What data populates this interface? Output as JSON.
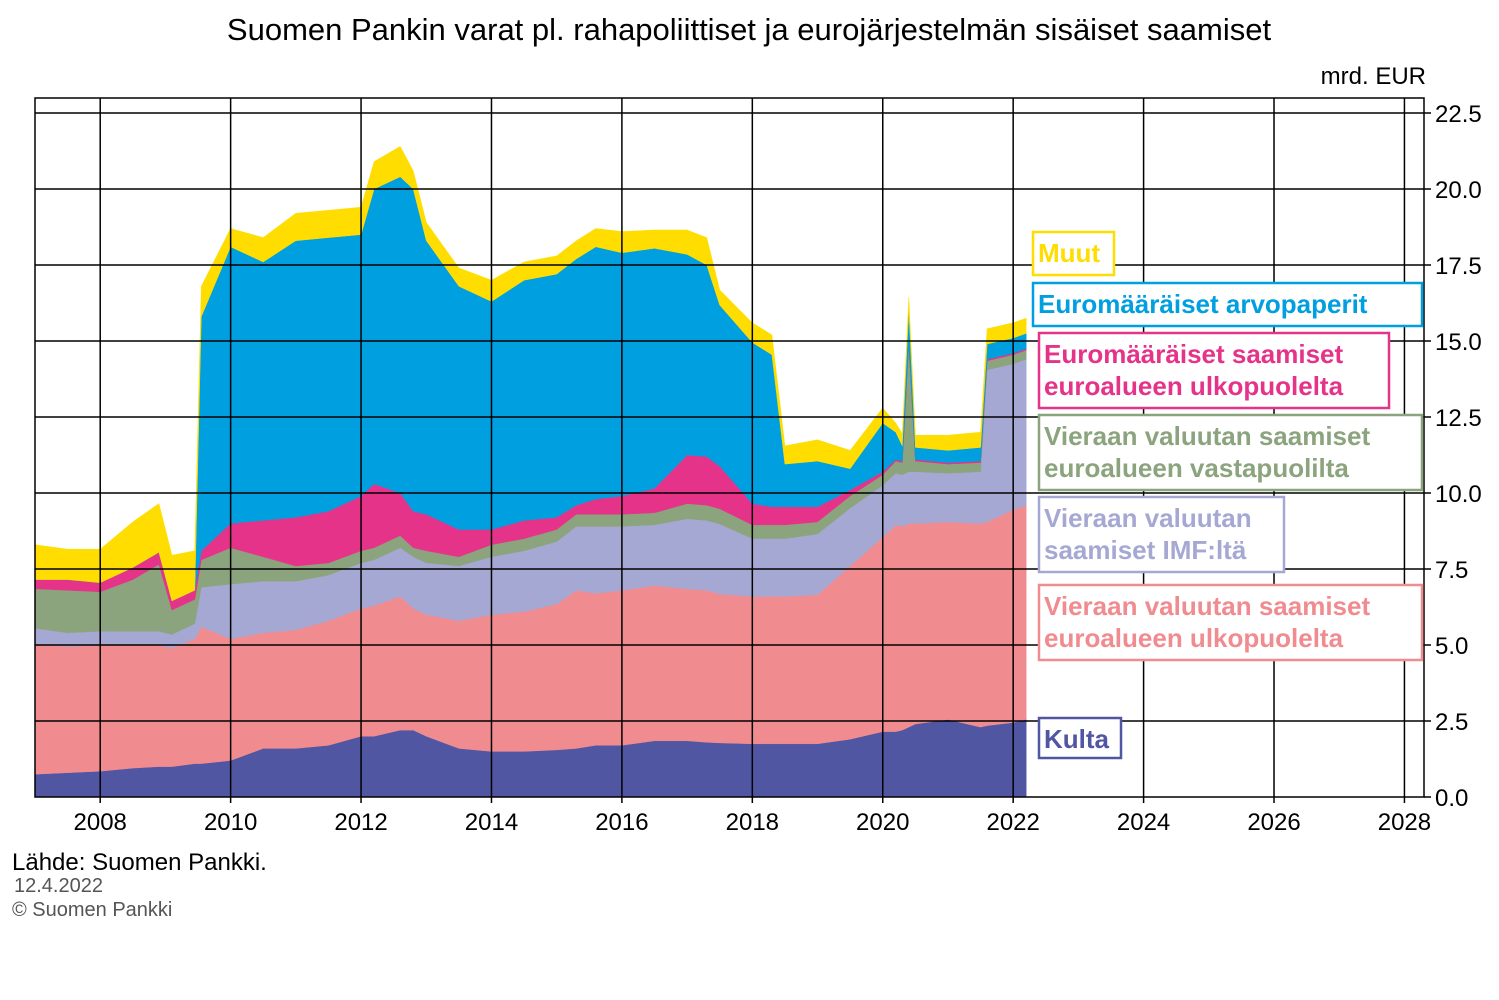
{
  "chart_data": {
    "type": "area",
    "stacked": true,
    "title": "Suomen Pankin varat pl. rahapoliittiset ja eurojärjestelmän sisäiset saamiset",
    "unit_label": "mrd. EUR",
    "x_range": [
      2007.0,
      2028.3
    ],
    "ylim": [
      0,
      22.5
    ],
    "x_ticks": [
      {
        "value": 2008,
        "label": "2008"
      },
      {
        "value": 2010,
        "label": "2010"
      },
      {
        "value": 2012,
        "label": "2012"
      },
      {
        "value": 2014,
        "label": "2014"
      },
      {
        "value": 2016,
        "label": "2016"
      },
      {
        "value": 2018,
        "label": "2018"
      },
      {
        "value": 2020,
        "label": "2020"
      },
      {
        "value": 2022,
        "label": "2022"
      },
      {
        "value": 2024,
        "label": "2024"
      },
      {
        "value": 2026,
        "label": "2026"
      },
      {
        "value": 2028,
        "label": "2028"
      }
    ],
    "y_ticks": [
      {
        "value": 0,
        "label": "0.0"
      },
      {
        "value": 2.5,
        "label": "2.5"
      },
      {
        "value": 5,
        "label": "5.0"
      },
      {
        "value": 7.5,
        "label": "7.5"
      },
      {
        "value": 10,
        "label": "10.0"
      },
      {
        "value": 12.5,
        "label": "12.5"
      },
      {
        "value": 15,
        "label": "15.0"
      },
      {
        "value": 17.5,
        "label": "17.5"
      },
      {
        "value": 20,
        "label": "20.0"
      },
      {
        "value": 22.5,
        "label": "22.5"
      }
    ],
    "grid": true,
    "x": [
      2007.0,
      2007.5,
      2008.0,
      2008.5,
      2008.9,
      2009.1,
      2009.45,
      2009.55,
      2010.0,
      2010.5,
      2011.0,
      2011.5,
      2012.0,
      2012.2,
      2012.6,
      2012.8,
      2013.0,
      2013.5,
      2014.0,
      2014.5,
      2015.0,
      2015.3,
      2015.6,
      2016.0,
      2016.5,
      2017.0,
      2017.3,
      2017.5,
      2018.0,
      2018.3,
      2018.5,
      2019.0,
      2019.5,
      2020.0,
      2020.2,
      2020.3,
      2020.4,
      2020.5,
      2021.0,
      2021.5,
      2021.6,
      2022.0,
      2022.2
    ],
    "series": [
      {
        "name": "Kulta",
        "color": "#5156a2",
        "values": [
          0.75,
          0.8,
          0.85,
          0.95,
          1.0,
          1.0,
          1.1,
          1.1,
          1.2,
          1.6,
          1.6,
          1.7,
          2.0,
          2.0,
          2.2,
          2.2,
          2.0,
          1.6,
          1.5,
          1.5,
          1.55,
          1.6,
          1.7,
          1.7,
          1.85,
          1.85,
          1.8,
          1.78,
          1.75,
          1.75,
          1.75,
          1.75,
          1.9,
          2.15,
          2.15,
          2.2,
          2.3,
          2.4,
          2.55,
          2.3,
          2.35,
          2.45,
          2.55
        ]
      },
      {
        "name": "Vieraan valuutan saamiset euroalueen ulkopuolelta",
        "color": "#f08c90",
        "values": [
          4.3,
          4.15,
          4.15,
          4.05,
          4.0,
          3.9,
          4.1,
          4.5,
          4.0,
          3.8,
          3.9,
          4.1,
          4.2,
          4.3,
          4.4,
          4.0,
          4.0,
          4.2,
          4.5,
          4.6,
          4.8,
          5.2,
          5.0,
          5.1,
          5.1,
          5.0,
          5.0,
          4.9,
          4.85,
          4.85,
          4.85,
          4.9,
          5.7,
          6.4,
          6.8,
          6.7,
          6.7,
          6.6,
          6.5,
          6.7,
          6.7,
          7.0,
          7.05
        ]
      },
      {
        "name": "Vieraan valuutan saamiset IMF:ltä",
        "color": "#a6a8d4",
        "values": [
          0.5,
          0.45,
          0.45,
          0.45,
          0.45,
          0.45,
          0.5,
          1.3,
          1.8,
          1.7,
          1.6,
          1.5,
          1.5,
          1.5,
          1.6,
          1.7,
          1.7,
          1.8,
          1.9,
          2.0,
          2.05,
          2.1,
          2.2,
          2.1,
          2.0,
          2.3,
          2.3,
          2.3,
          1.9,
          1.9,
          1.9,
          2.0,
          1.9,
          1.7,
          1.7,
          1.7,
          1.7,
          1.7,
          1.6,
          1.7,
          5.0,
          4.8,
          4.8
        ]
      },
      {
        "name": "Vieraan valuutan saamiset euroalueen vastapuolilta",
        "color": "#8ca47e",
        "values": [
          1.3,
          1.4,
          1.3,
          1.7,
          2.2,
          0.8,
          0.8,
          0.9,
          1.2,
          0.8,
          0.5,
          0.4,
          0.4,
          0.4,
          0.4,
          0.3,
          0.4,
          0.3,
          0.4,
          0.4,
          0.4,
          0.4,
          0.4,
          0.4,
          0.4,
          0.5,
          0.5,
          0.5,
          0.45,
          0.45,
          0.45,
          0.4,
          0.4,
          0.35,
          0.4,
          0.4,
          4.2,
          0.35,
          0.3,
          0.3,
          0.3,
          0.3,
          0.3
        ]
      },
      {
        "name": "Euromääräiset saamiset euroalueen ulkopuolelta",
        "color": "#e5338a",
        "values": [
          0.3,
          0.35,
          0.3,
          0.4,
          0.4,
          0.3,
          0.3,
          0.3,
          0.8,
          1.2,
          1.6,
          1.7,
          1.8,
          2.1,
          1.4,
          1.2,
          1.2,
          0.9,
          0.5,
          0.6,
          0.4,
          0.3,
          0.5,
          0.6,
          0.8,
          1.6,
          1.6,
          1.4,
          0.7,
          0.6,
          0.6,
          0.5,
          0.2,
          0.1,
          0.05,
          0.05,
          0.05,
          0.05,
          0.05,
          0.05,
          0.05,
          0.05,
          0.05
        ]
      },
      {
        "name": "Euromääräiset arvopaperit",
        "color": "#009fe0",
        "values": [
          0.0,
          0.0,
          0.0,
          0.0,
          0.0,
          0.0,
          0.0,
          7.7,
          9.1,
          8.5,
          9.1,
          9.0,
          8.6,
          9.7,
          10.4,
          10.6,
          9.0,
          8.0,
          7.5,
          7.9,
          8.0,
          8.1,
          8.3,
          8.0,
          7.9,
          6.6,
          6.3,
          5.3,
          5.3,
          5.0,
          1.4,
          1.5,
          0.7,
          1.6,
          0.9,
          0.5,
          1.1,
          0.4,
          0.4,
          0.45,
          0.5,
          0.5,
          0.5
        ]
      },
      {
        "name": "Muut",
        "color": "#ffdd00",
        "values": [
          1.15,
          1.0,
          1.1,
          1.5,
          1.6,
          1.5,
          1.3,
          1.0,
          0.6,
          0.8,
          0.9,
          0.9,
          0.9,
          0.9,
          1.0,
          0.6,
          0.6,
          0.6,
          0.7,
          0.6,
          0.6,
          0.6,
          0.6,
          0.7,
          0.6,
          0.8,
          0.9,
          0.5,
          0.65,
          0.65,
          0.6,
          0.7,
          0.6,
          0.5,
          0.3,
          0.4,
          0.4,
          0.4,
          0.5,
          0.5,
          0.5,
          0.5,
          0.5
        ]
      }
    ],
    "legend": [
      {
        "text": "Muut",
        "color": "#ffdd00",
        "lines": [
          "Muut"
        ]
      },
      {
        "text": "Euromääräiset arvopaperit",
        "color": "#009fe0",
        "lines": [
          "Euromääräiset arvopaperit"
        ]
      },
      {
        "text": "Euromääräiset saamiset euroalueen ulkopuolelta",
        "color": "#e5338a",
        "lines": [
          "Euromääräiset saamiset",
          "euroalueen ulkopuolelta"
        ]
      },
      {
        "text": "Vieraan valuutan saamiset euroalueen vastapuolilta",
        "color": "#8ca47e",
        "lines": [
          "Vieraan valuutan saamiset",
          "euroalueen vastapuolilta"
        ]
      },
      {
        "text": "Vieraan valuutan saamiset IMF:ltä",
        "color": "#a6a8d4",
        "lines": [
          "Vieraan valuutan",
          "saamiset IMF:ltä"
        ]
      },
      {
        "text": "Vieraan valuutan saamiset euroalueen ulkopuolelta",
        "color": "#f08c90",
        "lines": [
          "Vieraan valuutan saamiset",
          "euroalueen ulkopuolelta"
        ]
      },
      {
        "text": "Kulta",
        "color": "#5156a2",
        "lines": [
          "Kulta"
        ]
      }
    ]
  },
  "footer": {
    "source": "Lähde: Suomen Pankki.",
    "date": "12.4.2022",
    "copyright": "© Suomen Pankki"
  }
}
